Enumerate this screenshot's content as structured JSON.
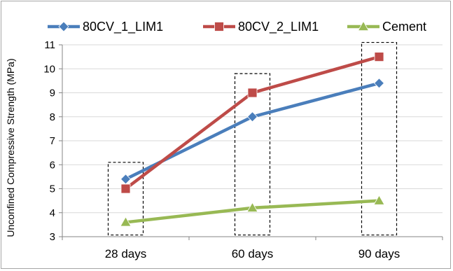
{
  "chart_data": {
    "type": "line",
    "title": "",
    "xlabel": "",
    "ylabel": "Unconfined Compressive Strength (MPa)",
    "categories": [
      "28 days",
      "60 days",
      "90 days"
    ],
    "ylim": [
      3,
      11
    ],
    "yticks": [
      3,
      4,
      5,
      6,
      7,
      8,
      9,
      10,
      11
    ],
    "grid": true,
    "legend_position": "top",
    "series": [
      {
        "name": "80CV_1_LIM1",
        "values": [
          5.4,
          8.0,
          9.4
        ],
        "color": "#4a7ebb",
        "marker": "diamond"
      },
      {
        "name": "80CV_2_LIM1",
        "values": [
          5.0,
          9.0,
          10.5
        ],
        "color": "#be4b48",
        "marker": "square"
      },
      {
        "name": "Cement",
        "values": [
          3.6,
          4.2,
          4.5
        ],
        "color": "#98b954",
        "marker": "triangle"
      }
    ],
    "annotations": [
      {
        "type": "dashed-box",
        "category": "28 days",
        "y_range": [
          3.1,
          6.1
        ]
      },
      {
        "type": "dashed-box",
        "category": "60 days",
        "y_range": [
          3.1,
          9.8
        ]
      },
      {
        "type": "dashed-box",
        "category": "90 days",
        "y_range": [
          3.1,
          11.1
        ]
      }
    ]
  }
}
